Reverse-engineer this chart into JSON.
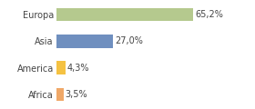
{
  "categories": [
    "Europa",
    "Asia",
    "America",
    "Africa"
  ],
  "values": [
    65.2,
    27.0,
    4.3,
    3.5
  ],
  "labels": [
    "65,2%",
    "27,0%",
    "4,3%",
    "3,5%"
  ],
  "bar_colors": [
    "#b5c98e",
    "#6f8fbf",
    "#f5c242",
    "#f0a868"
  ],
  "xlim": [
    0,
    80
  ],
  "background_color": "#ffffff",
  "label_fontsize": 7.0,
  "tick_fontsize": 7.0,
  "bar_height": 0.5
}
